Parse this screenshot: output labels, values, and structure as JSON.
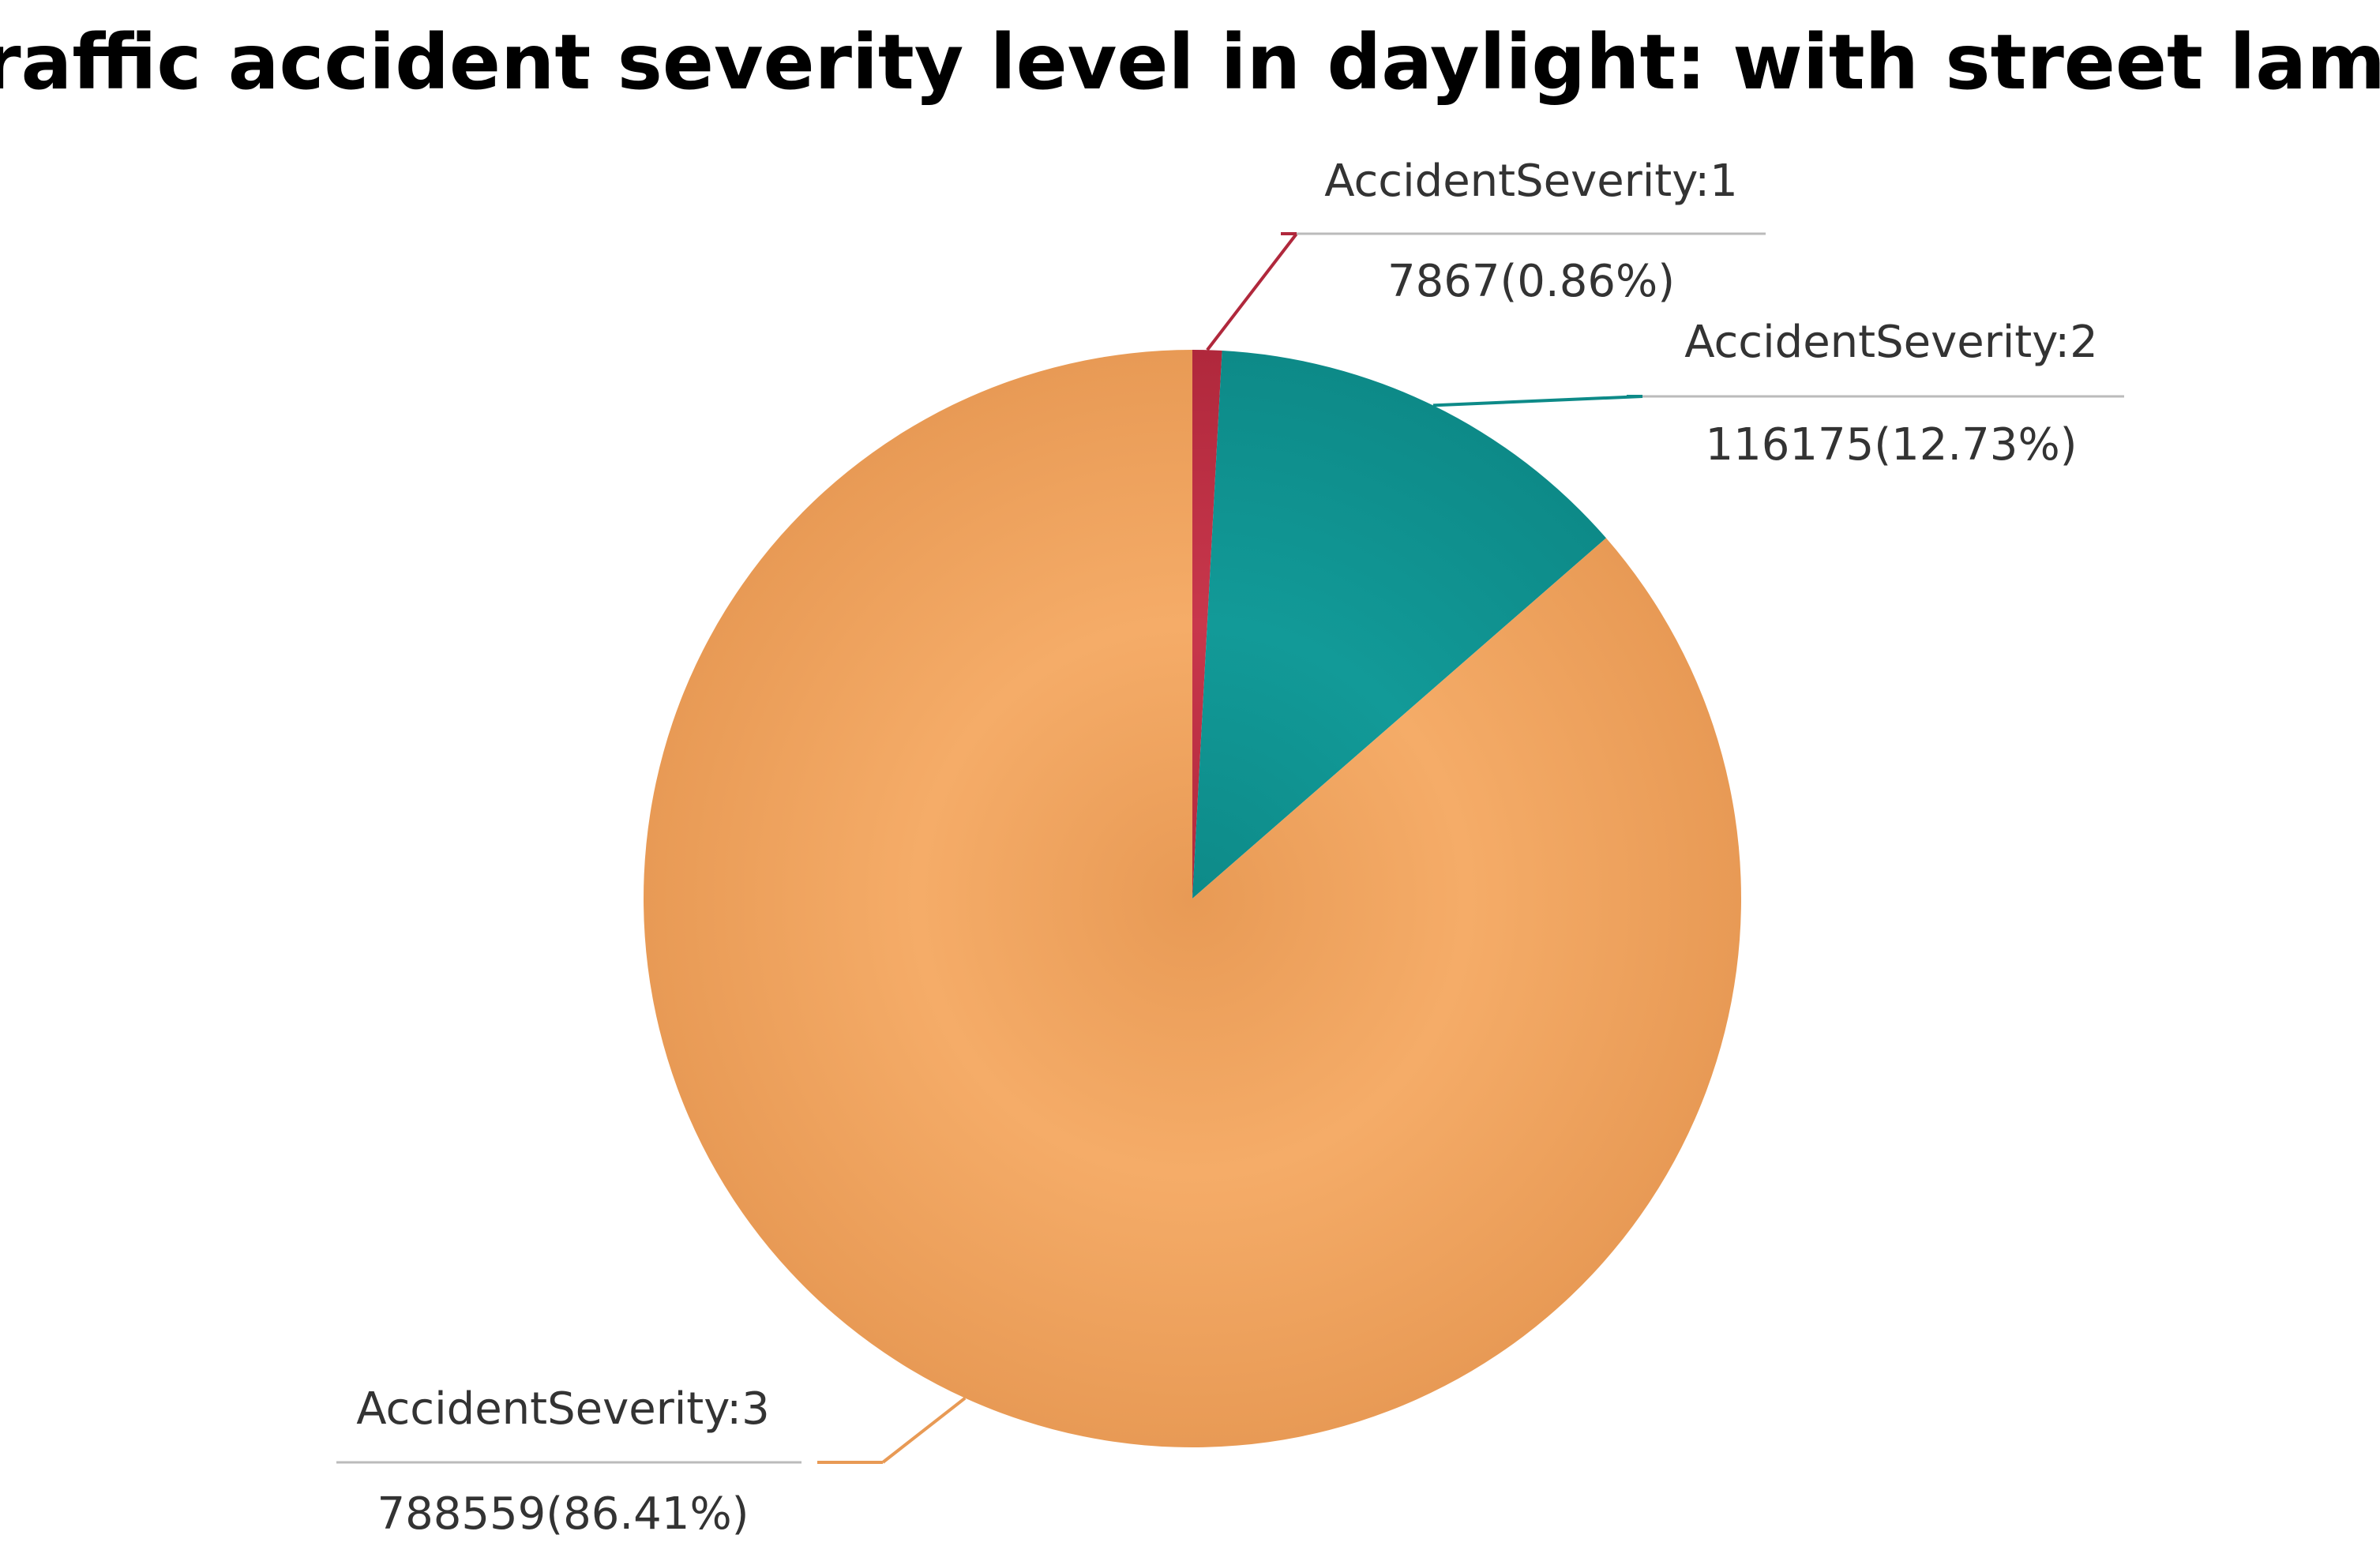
{
  "chart_data": {
    "type": "pie",
    "title": "Traffic accident severity level in daylight: with street lamp",
    "slices": [
      {
        "name": "AccidentSeverity:1",
        "value": 7867,
        "percent": "0.86%",
        "display": "7867(0.86%)",
        "color": "#b0283c",
        "color_light": "#c8374c",
        "label_side": "right"
      },
      {
        "name": "AccidentSeverity:2",
        "value": 116175,
        "percent": "12.73%",
        "display": "116175(12.73%)",
        "color": "#0d8a88",
        "color_light": "#129a98",
        "label_side": "right"
      },
      {
        "name": "AccidentSeverity:3",
        "value": 788559,
        "percent": "86.41%",
        "display": "788559(86.41%)",
        "color": "#e89a55",
        "color_light": "#f5ac68",
        "label_side": "left"
      }
    ],
    "start_angle": "12 o'clock",
    "direction": "clockwise",
    "legend": "none"
  }
}
